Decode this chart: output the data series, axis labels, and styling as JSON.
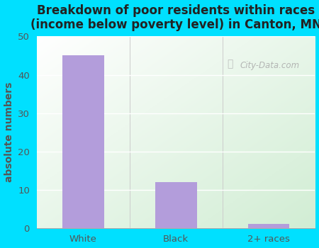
{
  "categories": [
    "White",
    "Black",
    "2+ races"
  ],
  "values": [
    45,
    12,
    1
  ],
  "bar_color": "#b39ddb",
  "title": "Breakdown of poor residents within races\n(income below poverty level) in Canton, MN",
  "ylabel": "absolute numbers",
  "ylim": [
    0,
    50
  ],
  "yticks": [
    0,
    10,
    20,
    30,
    40,
    50
  ],
  "background_outer": "#00e0ff",
  "title_fontsize": 12,
  "label_fontsize": 10,
  "tick_fontsize": 9.5,
  "bar_width": 0.45,
  "watermark": "City-Data.com"
}
